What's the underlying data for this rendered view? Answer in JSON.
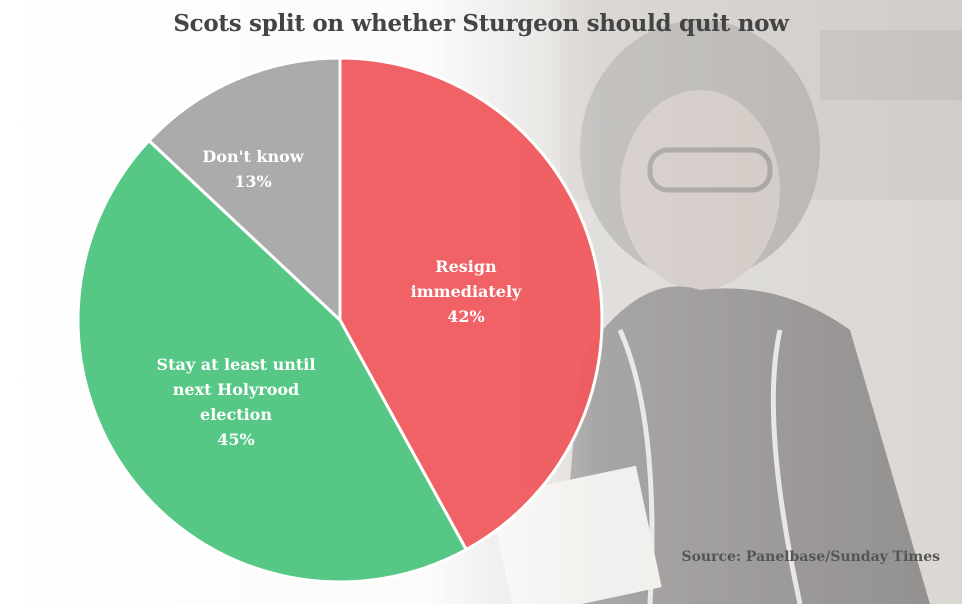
{
  "chart_data": {
    "type": "pie",
    "title": "Scots split on whether Sturgeon should quit now",
    "slices": [
      {
        "label_lines": [
          "Resign",
          "immediately"
        ],
        "pct_label": "42%",
        "value": 42,
        "color": "#f05a5e"
      },
      {
        "label_lines": [
          "Stay at least until",
          "next Holyrood",
          "election"
        ],
        "pct_label": "45%",
        "value": 45,
        "color": "#4dc47e"
      },
      {
        "label_lines": [
          "Don't know"
        ],
        "pct_label": "13%",
        "value": 13,
        "color": "#a7a7a7"
      }
    ],
    "source": "Source: Panelbase/Sunday Times"
  }
}
